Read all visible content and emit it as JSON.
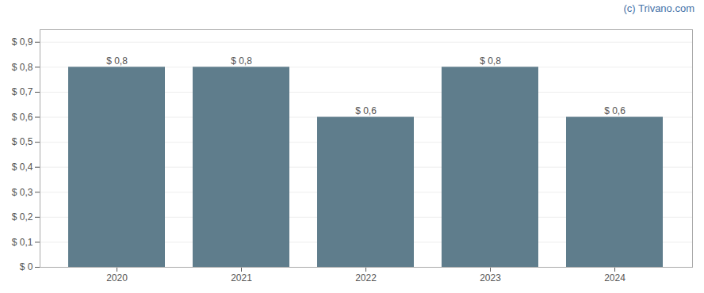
{
  "chart_data": {
    "type": "bar",
    "categories": [
      "2020",
      "2021",
      "2022",
      "2023",
      "2024"
    ],
    "values": [
      0.8,
      0.8,
      0.6,
      0.8,
      0.6
    ],
    "value_labels": [
      "$ 0,8",
      "$ 0,8",
      "$ 0,6",
      "$ 0,8",
      "$ 0,6"
    ],
    "data_labels": true,
    "color": "#5f7d8c",
    "ylim": [
      0,
      0.95
    ],
    "yticks": [
      {
        "value": 0.0,
        "label": "$ 0"
      },
      {
        "value": 0.1,
        "label": "$ 0,1"
      },
      {
        "value": 0.2,
        "label": "$ 0,2"
      },
      {
        "value": 0.3,
        "label": "$ 0,3"
      },
      {
        "value": 0.4,
        "label": "$ 0,4"
      },
      {
        "value": 0.5,
        "label": "$ 0,5"
      },
      {
        "value": 0.6,
        "label": "$ 0,6"
      },
      {
        "value": 0.7,
        "label": "$ 0,7"
      },
      {
        "value": 0.8,
        "label": "$ 0,8"
      },
      {
        "value": 0.9,
        "label": "$ 0,9"
      }
    ],
    "grid": true,
    "annotations": [
      {
        "text": "(c) Trivano.com",
        "color": "#4472a8"
      }
    ]
  }
}
